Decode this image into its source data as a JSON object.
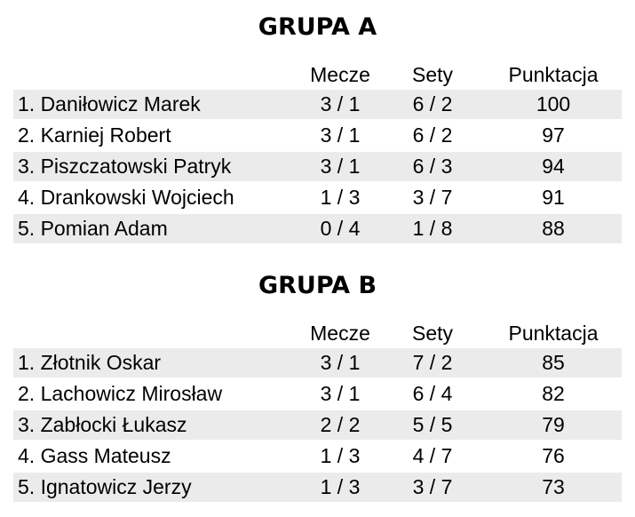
{
  "groups": [
    {
      "title": "GRUPA A",
      "headers": {
        "mecze": "Mecze",
        "sety": "Sety",
        "punktacja": "Punktacja"
      },
      "rows": [
        {
          "name": "1. Daniłowicz Marek",
          "mecze": "3 / 1",
          "sety": "6 / 2",
          "punktacja": "100"
        },
        {
          "name": "2. Karniej Robert",
          "mecze": "3 / 1",
          "sety": "6 / 2",
          "punktacja": "97"
        },
        {
          "name": "3. Piszczatowski Patryk",
          "mecze": "3 / 1",
          "sety": "6 / 3",
          "punktacja": "94"
        },
        {
          "name": "4. Drankowski Wojciech",
          "mecze": "1 / 3",
          "sety": "3 / 7",
          "punktacja": "91"
        },
        {
          "name": "5. Pomian Adam",
          "mecze": "0 / 4",
          "sety": "1 / 8",
          "punktacja": "88"
        }
      ]
    },
    {
      "title": "GRUPA B",
      "headers": {
        "mecze": "Mecze",
        "sety": "Sety",
        "punktacja": "Punktacja"
      },
      "rows": [
        {
          "name": "1. Złotnik Oskar",
          "mecze": "3 / 1",
          "sety": "7 / 2",
          "punktacja": "85"
        },
        {
          "name": "2. Lachowicz Mirosław",
          "mecze": "3 / 1",
          "sety": "6 / 4",
          "punktacja": "82"
        },
        {
          "name": "3. Zabłocki Łukasz",
          "mecze": "2 / 2",
          "sety": "5 / 5",
          "punktacja": "79"
        },
        {
          "name": "4. Gass Mateusz",
          "mecze": "1 / 3",
          "sety": "4 / 7",
          "punktacja": "76"
        },
        {
          "name": "5. Ignatowicz Jerzy",
          "mecze": "1 / 3",
          "sety": "3 / 7",
          "punktacja": "73"
        }
      ]
    }
  ],
  "colors": {
    "row_shade": "#ebebeb"
  }
}
